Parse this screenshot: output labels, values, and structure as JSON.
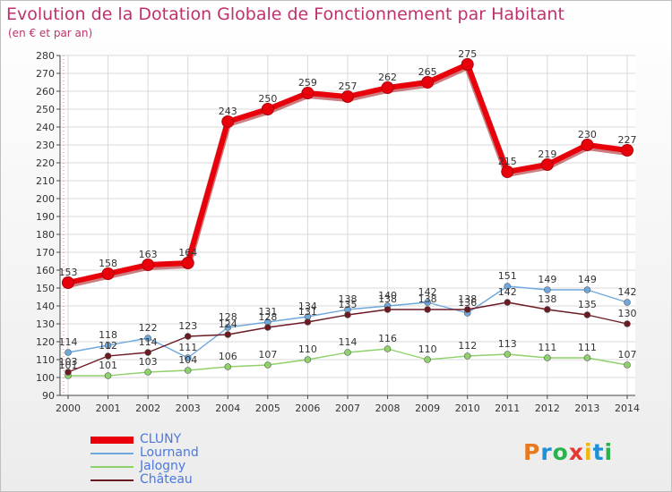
{
  "header": {
    "title": "Evolution de la Dotation Globale de Fonctionnement par Habitant",
    "subtitle": "(en € et par an)"
  },
  "logo": {
    "text": "Proxiti",
    "colors": [
      "#e8791e",
      "#1e90d8",
      "#2bb24c",
      "#e53935",
      "#f2b705",
      "#1e90d8",
      "#2bb24c"
    ]
  },
  "chart_data": {
    "type": "line",
    "title": "Evolution de la Dotation Globale de Fonctionnement par Habitant",
    "subtitle": "(en € et par an)",
    "xlabel": "",
    "ylabel": "",
    "x": [
      "2000",
      "2001",
      "2002",
      "2003",
      "2004",
      "2005",
      "2006",
      "2007",
      "2008",
      "2009",
      "2010",
      "2011",
      "2012",
      "2013",
      "2014"
    ],
    "ylim": [
      90,
      280
    ],
    "yticks": [
      90,
      100,
      110,
      120,
      130,
      140,
      150,
      160,
      170,
      180,
      190,
      200,
      210,
      220,
      230,
      240,
      250,
      260,
      270,
      280
    ],
    "grid": true,
    "legend_position": "bottom-left",
    "series": [
      {
        "name": "CLUNY",
        "color": "#e8000b",
        "values": [
          153,
          158,
          163,
          164,
          243,
          250,
          259,
          257,
          262,
          265,
          275,
          215,
          219,
          230,
          227
        ]
      },
      {
        "name": "Lournand",
        "color": "#6fa8dc",
        "values": [
          114,
          118,
          122,
          111,
          128,
          131,
          134,
          138,
          140,
          142,
          136,
          151,
          149,
          149,
          142
        ]
      },
      {
        "name": "Jalogny",
        "color": "#8fd16a",
        "values": [
          101,
          101,
          103,
          104,
          106,
          107,
          110,
          114,
          116,
          110,
          112,
          113,
          111,
          111,
          107
        ]
      },
      {
        "name": "Château",
        "color": "#6b1a22",
        "values": [
          103,
          112,
          114,
          123,
          124,
          128,
          131,
          135,
          138,
          138,
          138,
          142,
          138,
          135,
          130
        ]
      }
    ]
  }
}
